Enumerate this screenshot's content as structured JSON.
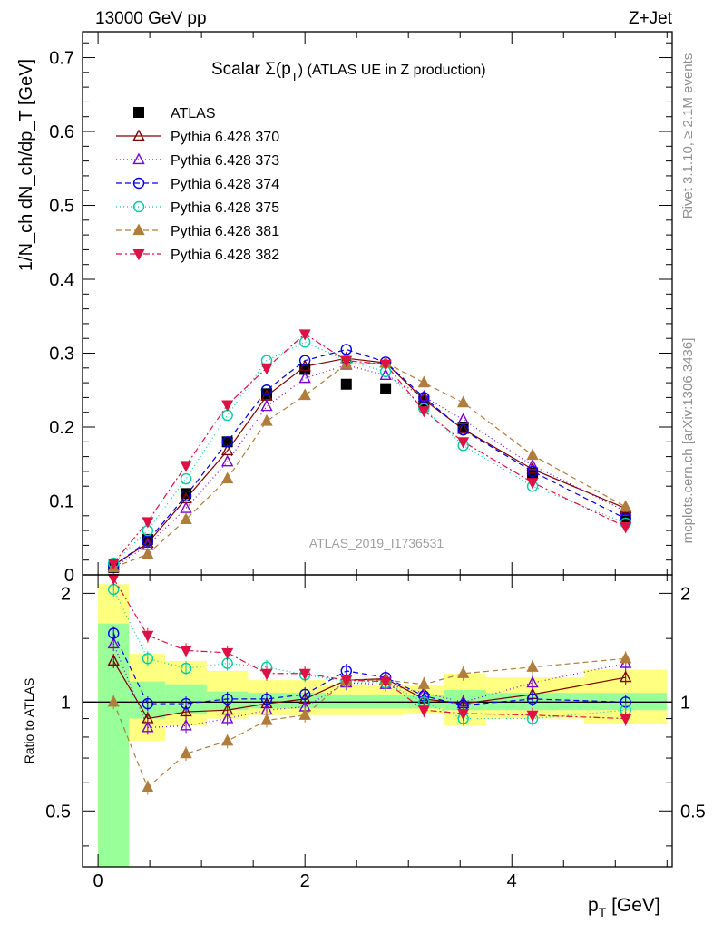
{
  "header": {
    "left": "13000 GeV pp",
    "right": "Z+Jet"
  },
  "side_labels": {
    "rivet": "Rivet 3.1.10, ≥ 2.1M events",
    "mcplots": "mcplots.cern.ch [arXiv:1306.3436]"
  },
  "chart_data": [
    {
      "type": "line",
      "panel": "main",
      "title": "Scalar Σ(p_T) (ATLAS UE in Z production)",
      "title_main": "Scalar Σ(p",
      "title_sub": "T",
      "title_tail": ") (ATLAS UE in Z production)",
      "ylabel": "1/N_ch dN_ch/dp_T [GeV]",
      "watermark": "ATLAS_2019_I1736531",
      "ylim": [
        0,
        0.735
      ],
      "yticks": [
        "0",
        "0.1",
        "0.2",
        "0.3",
        "0.4",
        "0.5",
        "0.6",
        "0.7"
      ],
      "x": [
        0.15,
        0.48,
        0.85,
        1.25,
        1.63,
        2.0,
        2.4,
        2.78,
        3.15,
        3.53,
        4.2,
        5.1
      ],
      "series": [
        {
          "name": "ATLAS",
          "color": "#000000",
          "marker": "square",
          "dash": "none",
          "values": [
            0.01,
            0.048,
            0.11,
            0.18,
            0.245,
            0.278,
            0.258,
            0.252,
            0.235,
            0.2,
            0.138,
            0.078
          ]
        },
        {
          "name": "Pythia 6.428 370",
          "color": "#7f0000",
          "marker": "triangle-open",
          "dash": "solid",
          "values": [
            0.013,
            0.043,
            0.103,
            0.168,
            0.242,
            0.282,
            0.293,
            0.287,
            0.237,
            0.197,
            0.143,
            0.09
          ]
        },
        {
          "name": "Pythia 6.428 373",
          "color": "#7b00d4",
          "marker": "triangle-open",
          "dash": "1,3",
          "values": [
            0.01,
            0.04,
            0.09,
            0.153,
            0.228,
            0.266,
            0.284,
            0.27,
            0.241,
            0.21,
            0.148,
            0.086
          ]
        },
        {
          "name": "Pythia 6.428 374",
          "color": "#0000ee",
          "marker": "circle-open",
          "dash": "6,4",
          "values": [
            0.012,
            0.046,
            0.107,
            0.18,
            0.25,
            0.29,
            0.305,
            0.288,
            0.24,
            0.196,
            0.14,
            0.076
          ]
        },
        {
          "name": "Pythia 6.428 375",
          "color": "#00ccaa",
          "marker": "circle-open",
          "dash": "1,3",
          "values": [
            0.016,
            0.06,
            0.13,
            0.216,
            0.29,
            0.315,
            0.29,
            0.275,
            0.225,
            0.175,
            0.12,
            0.07
          ]
        },
        {
          "name": "Pythia 6.428 381",
          "color": "#b07d3c",
          "marker": "triangle-filled",
          "dash": "6,4",
          "values": [
            0.01,
            0.028,
            0.075,
            0.13,
            0.208,
            0.243,
            0.285,
            0.287,
            0.26,
            0.233,
            0.162,
            0.092
          ]
        },
        {
          "name": "Pythia 6.428 382",
          "color": "#dd1144",
          "marker": "triangle-down-filled",
          "dash": "7,3,2,3",
          "values": [
            0.016,
            0.072,
            0.148,
            0.23,
            0.28,
            0.326,
            0.29,
            0.285,
            0.222,
            0.18,
            0.125,
            0.065
          ]
        }
      ]
    },
    {
      "type": "line",
      "panel": "ratio",
      "ylabel": "Ratio to ATLAS",
      "xlabel": "p_T [GeV]",
      "xlabel_main": "p",
      "xlabel_sub": "T",
      "xlabel_tail": " [GeV]",
      "xlim": [
        -0.15,
        5.55
      ],
      "xticks": [
        "0",
        "2",
        "4"
      ],
      "ylim": [
        0.35,
        2.25
      ],
      "yticks": [
        "0.5",
        "1",
        "2"
      ],
      "uncertainty_bins": [
        {
          "lo": 0.0,
          "hi": 0.3,
          "green": [
            0.35,
            1.65
          ],
          "yellow": [
            0.35,
            2.12
          ]
        },
        {
          "lo": 0.3,
          "hi": 0.65,
          "green": [
            0.9,
            1.14
          ],
          "yellow": [
            0.78,
            1.36
          ]
        },
        {
          "lo": 0.65,
          "hi": 1.05,
          "green": [
            0.93,
            1.12
          ],
          "yellow": [
            0.86,
            1.3
          ]
        },
        {
          "lo": 1.05,
          "hi": 1.45,
          "green": [
            0.95,
            1.07
          ],
          "yellow": [
            0.9,
            1.22
          ]
        },
        {
          "lo": 1.45,
          "hi": 1.8,
          "green": [
            0.96,
            1.06
          ],
          "yellow": [
            0.92,
            1.15
          ]
        },
        {
          "lo": 1.8,
          "hi": 2.2,
          "green": [
            0.96,
            1.06
          ],
          "yellow": [
            0.92,
            1.15
          ]
        },
        {
          "lo": 2.2,
          "hi": 2.6,
          "green": [
            0.96,
            1.05
          ],
          "yellow": [
            0.92,
            1.12
          ]
        },
        {
          "lo": 2.6,
          "hi": 2.95,
          "green": [
            0.96,
            1.05
          ],
          "yellow": [
            0.92,
            1.12
          ]
        },
        {
          "lo": 2.95,
          "hi": 3.35,
          "green": [
            0.96,
            1.05
          ],
          "yellow": [
            0.93,
            1.11
          ]
        },
        {
          "lo": 3.35,
          "hi": 3.75,
          "green": [
            0.95,
            1.08
          ],
          "yellow": [
            0.86,
            1.2
          ]
        },
        {
          "lo": 3.75,
          "hi": 4.7,
          "green": [
            0.95,
            1.06
          ],
          "yellow": [
            0.9,
            1.17
          ]
        },
        {
          "lo": 4.7,
          "hi": 5.5,
          "green": [
            0.95,
            1.06
          ],
          "yellow": [
            0.87,
            1.23
          ]
        }
      ],
      "series": [
        {
          "name": "Pythia 6.428 370",
          "values": [
            1.3,
            0.9,
            0.94,
            0.95,
            0.99,
            1.02,
            1.15,
            1.16,
            1.02,
            0.99,
            1.05,
            1.17
          ]
        },
        {
          "name": "Pythia 6.428 373",
          "values": [
            1.45,
            0.85,
            0.86,
            0.9,
            0.95,
            0.97,
            1.13,
            1.12,
            1.06,
            1.0,
            1.13,
            1.28
          ]
        },
        {
          "name": "Pythia 6.428 374",
          "values": [
            1.55,
            0.99,
            0.99,
            1.02,
            1.02,
            1.05,
            1.22,
            1.17,
            1.04,
            0.98,
            1.02,
            1.0
          ]
        },
        {
          "name": "Pythia 6.428 375",
          "values": [
            2.05,
            1.32,
            1.24,
            1.28,
            1.25,
            1.19,
            1.14,
            1.13,
            1.0,
            0.9,
            0.9,
            0.95
          ]
        },
        {
          "name": "Pythia 6.428 381",
          "values": [
            1.0,
            0.58,
            0.72,
            0.78,
            0.89,
            0.92,
            1.15,
            1.15,
            1.12,
            1.2,
            1.25,
            1.32
          ]
        },
        {
          "name": "Pythia 6.428 382",
          "values": [
            2.2,
            1.53,
            1.39,
            1.37,
            1.2,
            1.2,
            1.15,
            1.14,
            0.95,
            0.93,
            0.92,
            0.9
          ]
        }
      ]
    }
  ]
}
